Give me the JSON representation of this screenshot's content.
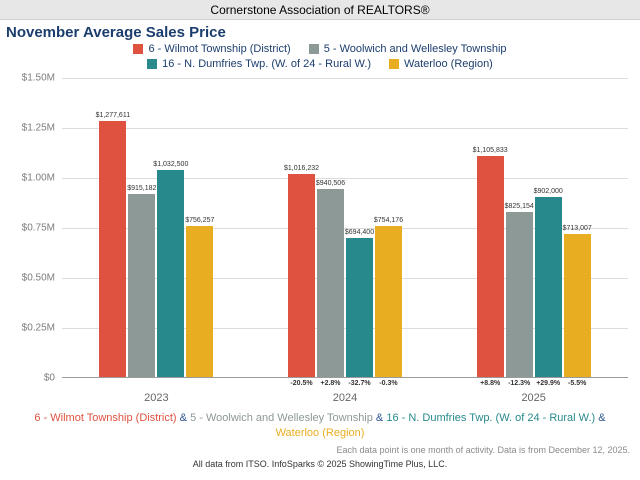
{
  "window": {
    "org_banner": "Cornerstone Association of REALTORS®"
  },
  "title": "November Average Sales Price",
  "theme": {
    "title_color": "#1c3e6e",
    "separator_color": "#2d5590",
    "grid_color": "#dcdcdc",
    "axis_color": "#9b9b9b"
  },
  "chart_data": {
    "type": "bar",
    "title": "November Average Sales Price",
    "categories": [
      "2023",
      "2024",
      "2025"
    ],
    "series": [
      {
        "name": "6 - Wilmot Township (District)",
        "color": "#df5240",
        "values": [
          1277611,
          1016232,
          1105833
        ],
        "value_labels": [
          "$1,277,611",
          "$1,016,232",
          "$1,105,833"
        ],
        "pct_change": [
          "",
          "-20.5%",
          "+8.8%"
        ]
      },
      {
        "name": "5 - Woolwich and Wellesley Township",
        "color": "#8d9997",
        "values": [
          915182,
          940506,
          825154
        ],
        "value_labels": [
          "$915,182",
          "$940,506",
          "$825,154"
        ],
        "pct_change": [
          "",
          "+2.8%",
          "-12.3%"
        ]
      },
      {
        "name": "16 - N. Dumfries Twp. (W. of 24 - Rural W.)",
        "color": "#27898c",
        "values": [
          1032500,
          694400,
          902000
        ],
        "value_labels": [
          "$1,032,500",
          "$694,400",
          "$902,000"
        ],
        "pct_change": [
          "",
          "-32.7%",
          "+29.9%"
        ]
      },
      {
        "name": "Waterloo (Region)",
        "color": "#e9ad21",
        "values": [
          756257,
          754176,
          713007
        ],
        "value_labels": [
          "$756,257",
          "$754,176",
          "$713,007"
        ],
        "pct_change": [
          "",
          "-0.3%",
          "-5.5%"
        ]
      }
    ],
    "ylim": [
      0,
      1500000
    ],
    "ytick_labels": [
      "$1.50M",
      "$1.25M",
      "$1.00M",
      "$0.75M",
      "$0.50M",
      "$0.25M",
      "$0"
    ],
    "grid": true,
    "legend_position": "top",
    "separator": " & "
  },
  "notes": {
    "activity": "Each data point is one month of activity. Data is from December 12, 2025.",
    "source": "All data from ITSO. InfoSparks © 2025 ShowingTime Plus, LLC."
  }
}
